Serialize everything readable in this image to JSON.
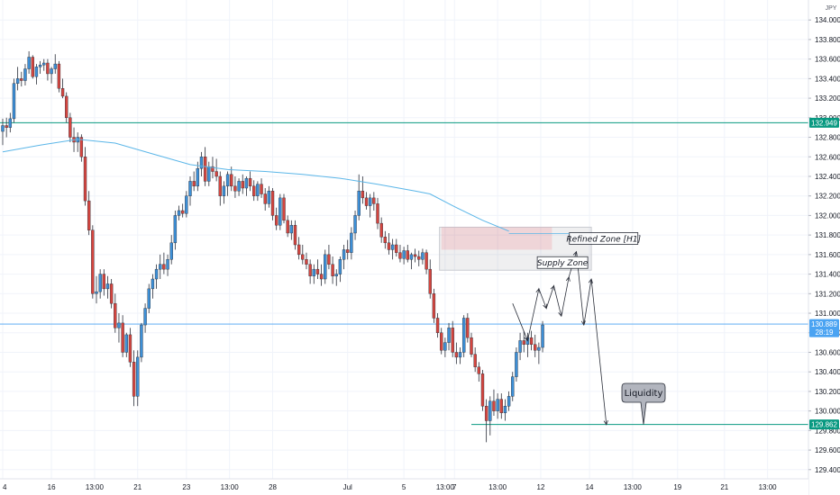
{
  "chart_data": {
    "type": "candlestick",
    "currency": "JPY",
    "ylim": [
      129.26,
      134.14
    ],
    "y_ticks": [
      "134.000",
      "133.800",
      "133.600",
      "133.400",
      "133.200",
      "133.000",
      "132.800",
      "132.600",
      "132.400",
      "132.200",
      "132.000",
      "131.800",
      "131.600",
      "131.400",
      "131.200",
      "131.000",
      "130.800",
      "130.600",
      "130.400",
      "130.200",
      "130.000",
      "129.800",
      "129.600",
      "129.400"
    ],
    "x_ticks": [
      {
        "label": "4",
        "pos": 0
      },
      {
        "label": "16",
        "pos": 13
      },
      {
        "label": "13:00",
        "pos": 24.5
      },
      {
        "label": "21",
        "pos": 36
      },
      {
        "label": "23",
        "pos": 49
      },
      {
        "label": "13:00",
        "pos": 60.5
      },
      {
        "label": "28",
        "pos": 72
      },
      {
        "label": "Jul",
        "pos": 92
      },
      {
        "label": "5",
        "pos": 107
      },
      {
        "label": "13:00",
        "pos": 118
      },
      {
        "label": "7",
        "pos": 120.5
      },
      {
        "label": "13:00",
        "pos": 132
      },
      {
        "label": "12",
        "pos": 143.5
      },
      {
        "label": "14",
        "pos": 156.5
      },
      {
        "label": "13:00",
        "pos": 168
      },
      {
        "label": "19",
        "pos": 180
      },
      {
        "label": "21",
        "pos": 192.5
      },
      {
        "label": "13:00",
        "pos": 204
      }
    ],
    "candles": [
      [
        132.86,
        132.99,
        132.72,
        132.92
      ],
      [
        132.92,
        133.0,
        132.8,
        132.9
      ],
      [
        132.9,
        133.05,
        132.85,
        132.99
      ],
      [
        132.99,
        133.4,
        132.95,
        133.35
      ],
      [
        133.35,
        133.52,
        133.28,
        133.4
      ],
      [
        133.4,
        133.47,
        133.32,
        133.38
      ],
      [
        133.38,
        133.55,
        133.33,
        133.5
      ],
      [
        133.5,
        133.68,
        133.45,
        133.62
      ],
      [
        133.62,
        133.64,
        133.4,
        133.42
      ],
      [
        133.42,
        133.55,
        133.34,
        133.52
      ],
      [
        133.52,
        133.58,
        133.45,
        133.54
      ],
      [
        133.54,
        133.6,
        133.48,
        133.56
      ],
      [
        133.56,
        133.6,
        133.38,
        133.45
      ],
      [
        133.45,
        133.52,
        133.35,
        133.5
      ],
      [
        133.5,
        133.65,
        133.45,
        133.55
      ],
      [
        133.55,
        133.58,
        133.26,
        133.3
      ],
      [
        133.3,
        133.4,
        133.2,
        133.22
      ],
      [
        133.22,
        133.26,
        132.95,
        133.0
      ],
      [
        133.0,
        133.05,
        132.75,
        132.8
      ],
      [
        132.8,
        132.9,
        132.65,
        132.75
      ],
      [
        132.75,
        132.85,
        132.65,
        132.8
      ],
      [
        132.8,
        132.83,
        132.55,
        132.6
      ],
      [
        132.6,
        132.7,
        132.1,
        132.15
      ],
      [
        132.15,
        132.25,
        131.8,
        131.85
      ],
      [
        131.85,
        131.9,
        131.15,
        131.2
      ],
      [
        131.2,
        131.38,
        131.1,
        131.22
      ],
      [
        131.22,
        131.45,
        131.15,
        131.4
      ],
      [
        131.4,
        131.45,
        131.18,
        131.25
      ],
      [
        131.25,
        131.38,
        131.15,
        131.3
      ],
      [
        131.3,
        131.35,
        131.05,
        131.1
      ],
      [
        131.1,
        131.2,
        130.8,
        130.85
      ],
      [
        130.85,
        131.0,
        130.7,
        130.9
      ],
      [
        130.9,
        130.98,
        130.55,
        130.6
      ],
      [
        130.6,
        130.8,
        130.55,
        130.78
      ],
      [
        130.78,
        130.85,
        130.45,
        130.5
      ],
      [
        130.5,
        130.62,
        130.05,
        130.15
      ],
      [
        130.15,
        130.62,
        130.05,
        130.55
      ],
      [
        130.55,
        130.9,
        130.5,
        130.88
      ],
      [
        130.88,
        131.1,
        130.8,
        131.05
      ],
      [
        131.05,
        131.3,
        131.0,
        131.25
      ],
      [
        131.25,
        131.4,
        131.15,
        131.35
      ],
      [
        131.35,
        131.5,
        131.25,
        131.45
      ],
      [
        131.45,
        131.6,
        131.35,
        131.5
      ],
      [
        131.5,
        131.62,
        131.4,
        131.45
      ],
      [
        131.45,
        131.6,
        131.38,
        131.55
      ],
      [
        131.55,
        131.8,
        131.5,
        131.72
      ],
      [
        131.72,
        132.05,
        131.65,
        132.0
      ],
      [
        132.0,
        132.1,
        131.95,
        132.05
      ],
      [
        132.05,
        132.12,
        131.98,
        132.02
      ],
      [
        132.02,
        132.25,
        131.98,
        132.2
      ],
      [
        132.2,
        132.4,
        132.1,
        132.35
      ],
      [
        132.35,
        132.45,
        132.25,
        132.3
      ],
      [
        132.3,
        132.55,
        132.25,
        132.48
      ],
      [
        132.48,
        132.65,
        132.4,
        132.6
      ],
      [
        132.6,
        132.7,
        132.3,
        132.35
      ],
      [
        132.35,
        132.55,
        132.3,
        132.5
      ],
      [
        132.5,
        132.6,
        132.38,
        132.45
      ],
      [
        132.45,
        132.58,
        132.35,
        132.4
      ],
      [
        132.4,
        132.45,
        132.1,
        132.2
      ],
      [
        132.2,
        132.35,
        132.12,
        132.3
      ],
      [
        132.3,
        132.45,
        132.2,
        132.42
      ],
      [
        132.42,
        132.5,
        132.25,
        132.3
      ],
      [
        132.3,
        132.4,
        132.18,
        132.25
      ],
      [
        132.25,
        132.38,
        132.2,
        132.35
      ],
      [
        132.35,
        132.42,
        132.22,
        132.28
      ],
      [
        132.28,
        132.4,
        132.2,
        132.38
      ],
      [
        132.38,
        132.45,
        132.25,
        132.3
      ],
      [
        132.3,
        132.36,
        132.15,
        132.2
      ],
      [
        132.2,
        132.35,
        132.15,
        132.32
      ],
      [
        132.32,
        132.38,
        132.18,
        132.22
      ],
      [
        132.22,
        132.28,
        132.05,
        132.12
      ],
      [
        132.12,
        132.3,
        132.08,
        132.25
      ],
      [
        132.25,
        132.28,
        131.95,
        132.0
      ],
      [
        132.0,
        132.08,
        131.85,
        131.9
      ],
      [
        131.9,
        132.22,
        131.85,
        132.18
      ],
      [
        132.18,
        132.22,
        131.92,
        131.95
      ],
      [
        131.95,
        132.0,
        131.78,
        131.82
      ],
      [
        131.82,
        131.95,
        131.75,
        131.9
      ],
      [
        131.9,
        131.95,
        131.65,
        131.7
      ],
      [
        131.7,
        131.78,
        131.55,
        131.6
      ],
      [
        131.6,
        131.7,
        131.5,
        131.55
      ],
      [
        131.55,
        131.62,
        131.45,
        131.5
      ],
      [
        131.5,
        131.55,
        131.3,
        131.38
      ],
      [
        131.38,
        131.5,
        131.3,
        131.45
      ],
      [
        131.45,
        131.55,
        131.35,
        131.4
      ],
      [
        131.4,
        131.5,
        131.28,
        131.35
      ],
      [
        131.35,
        131.65,
        131.3,
        131.6
      ],
      [
        131.6,
        131.7,
        131.45,
        131.5
      ],
      [
        131.5,
        131.58,
        131.3,
        131.38
      ],
      [
        131.38,
        131.45,
        131.28,
        131.4
      ],
      [
        131.4,
        131.58,
        131.32,
        131.55
      ],
      [
        131.55,
        131.7,
        131.45,
        131.65
      ],
      [
        131.65,
        131.75,
        131.55,
        131.62
      ],
      [
        131.62,
        131.88,
        131.55,
        131.82
      ],
      [
        131.82,
        132.05,
        131.75,
        132.0
      ],
      [
        132.0,
        132.42,
        131.95,
        132.25
      ],
      [
        132.25,
        132.4,
        132.12,
        132.18
      ],
      [
        132.18,
        132.24,
        132.06,
        132.1
      ],
      [
        132.1,
        132.22,
        131.98,
        132.18
      ],
      [
        132.18,
        132.24,
        132.05,
        132.12
      ],
      [
        132.12,
        132.18,
        131.86,
        131.92
      ],
      [
        131.92,
        131.98,
        131.72,
        131.78
      ],
      [
        131.78,
        131.84,
        131.66,
        131.72
      ],
      [
        131.72,
        131.82,
        131.6,
        131.65
      ],
      [
        131.65,
        131.76,
        131.55,
        131.7
      ],
      [
        131.7,
        131.76,
        131.58,
        131.62
      ],
      [
        131.62,
        131.7,
        131.52,
        131.56
      ],
      [
        131.56,
        131.68,
        131.5,
        131.64
      ],
      [
        131.64,
        131.7,
        131.52,
        131.55
      ],
      [
        131.55,
        131.62,
        131.45,
        131.6
      ],
      [
        131.6,
        131.66,
        131.52,
        131.58
      ],
      [
        131.58,
        131.64,
        131.48,
        131.55
      ],
      [
        131.55,
        131.66,
        131.5,
        131.62
      ],
      [
        131.62,
        131.65,
        131.4,
        131.45
      ],
      [
        131.45,
        131.55,
        131.15,
        131.2
      ],
      [
        131.2,
        131.25,
        130.9,
        130.95
      ],
      [
        130.95,
        131.0,
        130.75,
        130.8
      ],
      [
        130.8,
        130.85,
        130.58,
        130.62
      ],
      [
        130.62,
        130.75,
        130.55,
        130.7
      ],
      [
        130.7,
        130.9,
        130.62,
        130.85
      ],
      [
        130.85,
        130.92,
        130.55,
        130.6
      ],
      [
        130.6,
        130.7,
        130.48,
        130.55
      ],
      [
        130.55,
        130.65,
        130.48,
        130.6
      ],
      [
        130.6,
        130.98,
        130.55,
        130.95
      ],
      [
        130.95,
        131.0,
        130.7,
        130.75
      ],
      [
        130.75,
        130.8,
        130.55,
        130.58
      ],
      [
        130.58,
        130.65,
        130.4,
        130.45
      ],
      [
        130.45,
        130.5,
        130.3,
        130.38
      ],
      [
        130.38,
        130.42,
        130.0,
        130.05
      ],
      [
        130.05,
        130.12,
        129.68,
        129.9
      ],
      [
        129.9,
        130.15,
        129.75,
        130.1
      ],
      [
        130.1,
        130.22,
        129.95,
        130.0
      ],
      [
        130.0,
        130.18,
        129.92,
        130.12
      ],
      [
        130.12,
        130.18,
        129.92,
        129.98
      ],
      [
        129.98,
        130.12,
        129.9,
        130.05
      ],
      [
        130.05,
        130.2,
        130.0,
        130.15
      ],
      [
        130.15,
        130.4,
        130.1,
        130.35
      ],
      [
        130.35,
        130.65,
        130.3,
        130.6
      ],
      [
        130.6,
        130.8,
        130.52,
        130.72
      ],
      [
        130.72,
        130.82,
        130.6,
        130.68
      ],
      [
        130.68,
        130.8,
        130.55,
        130.75
      ],
      [
        130.75,
        130.82,
        130.62,
        130.68
      ],
      [
        130.68,
        130.78,
        130.55,
        130.62
      ],
      [
        130.62,
        130.7,
        130.48,
        130.65
      ],
      [
        130.65,
        130.92,
        130.6,
        130.88
      ]
    ],
    "ma_points": [
      [
        0,
        132.65
      ],
      [
        10,
        132.72
      ],
      [
        20,
        132.78
      ],
      [
        30,
        132.74
      ],
      [
        40,
        132.63
      ],
      [
        50,
        132.52
      ],
      [
        60,
        132.47
      ],
      [
        70,
        132.45
      ],
      [
        80,
        132.42
      ],
      [
        90,
        132.38
      ],
      [
        100,
        132.32
      ],
      [
        110,
        132.25
      ],
      [
        114,
        132.22
      ],
      [
        120,
        132.1
      ],
      [
        128,
        131.95
      ],
      [
        135,
        131.84
      ]
    ],
    "projection": [
      [
        136,
        131.1
      ],
      [
        140,
        130.72
      ],
      [
        143,
        131.25
      ],
      [
        145,
        131.05
      ],
      [
        147,
        131.28
      ],
      [
        149,
        130.97
      ],
      [
        151,
        131.37
      ],
      [
        153,
        131.63
      ],
      [
        155,
        130.88
      ],
      [
        157,
        131.35
      ],
      [
        161,
        129.86
      ]
    ],
    "lines": [
      {
        "price": 132.949,
        "label": "132.949",
        "color": "#089981"
      },
      {
        "price": 130.889,
        "label": "130.889",
        "sub": "28:19",
        "color": "#4aa3f2"
      },
      {
        "price": 129.862,
        "label": "129.862",
        "color": "#089981"
      }
    ],
    "zones": [
      {
        "x0": 116.5,
        "x1": 157,
        "top": 131.88,
        "bottom": 131.44,
        "label": "Supply Zone"
      },
      {
        "x0": 117,
        "x1": 146.5,
        "top": 131.88,
        "bottom": 131.65,
        "label": "Refined Zone [H1]"
      }
    ],
    "liquidity_label": "Liquidity"
  }
}
